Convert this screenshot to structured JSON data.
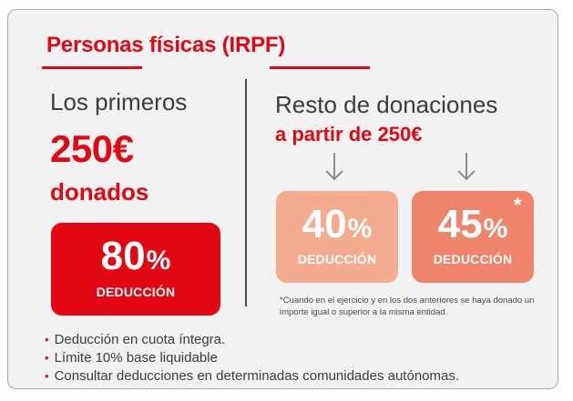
{
  "title": "Personas físicas (IRPF)",
  "left": {
    "line1": "Los primeros",
    "amount": "250€",
    "line3": "donados",
    "box": {
      "number": "80",
      "symbol": "%",
      "label": "DEDUCCIÓN",
      "color": "#e30613"
    }
  },
  "right": {
    "line1": "Resto de donaciones",
    "line2": "a partir de 250€",
    "box_a": {
      "number": "40",
      "symbol": "%",
      "label": "DEDUCCIÓN",
      "color": "#f5ab8f"
    },
    "box_b": {
      "number": "45",
      "symbol": "%",
      "asterisk": "*",
      "label": "DEDUCCIÓN",
      "color": "#f0846b"
    },
    "footnote": "*Cuando en el ejercicio y en los dos anteriores se haya donado un importe igual o superior a la misma entidad."
  },
  "bullets": [
    "Deducción en cuota íntegra.",
    "Límite 10% base liquidable",
    "Consultar deducciones en determinadas comunidades autónomas."
  ],
  "bullet_glyph": "•",
  "colors": {
    "accent": "#e30613",
    "text": "#3c3c3c",
    "panel": "#f2f2f2",
    "border": "#a6a6a6"
  },
  "icons": {
    "down_arrow": "arrow-down-icon"
  }
}
